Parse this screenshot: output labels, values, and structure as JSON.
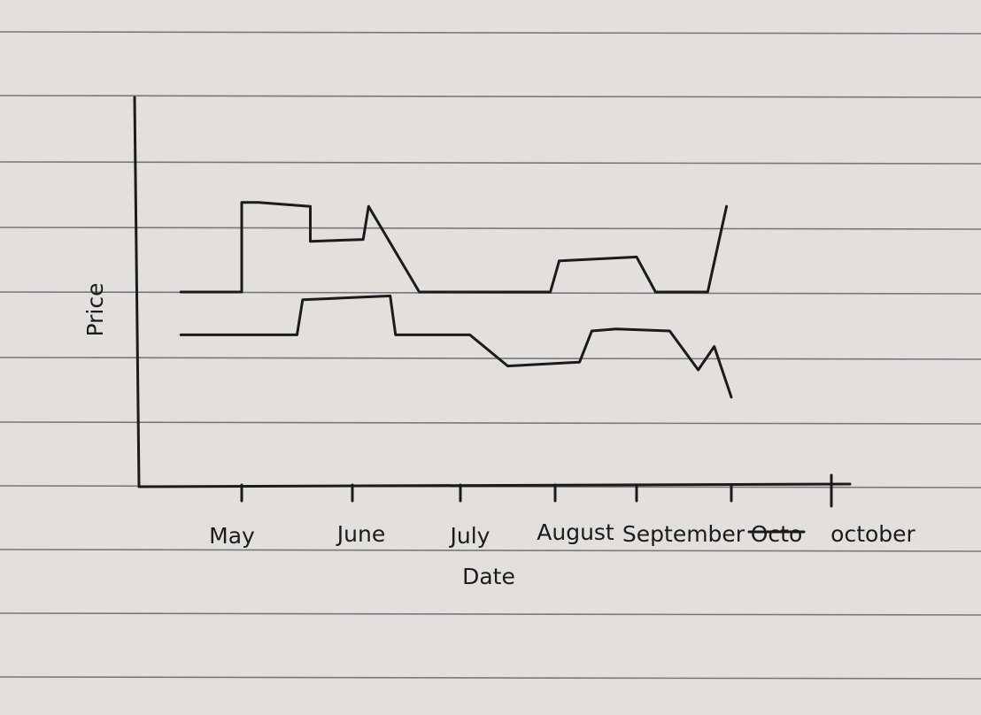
{
  "chart_data": {
    "type": "line",
    "xlabel": "Date",
    "ylabel": "Price",
    "categories": [
      "May",
      "June",
      "July",
      "August",
      "September",
      "octo",
      "october"
    ],
    "struck_label": "Octo",
    "x_range": [
      0,
      6
    ],
    "y_range": [
      0,
      10
    ],
    "grid": true,
    "series": [
      {
        "values": [
          [
            -0.55,
            5.0
          ],
          [
            0.0,
            5.0
          ],
          [
            0.0,
            7.3
          ],
          [
            0.15,
            7.3
          ],
          [
            0.62,
            7.2
          ],
          [
            0.62,
            6.3
          ],
          [
            1.1,
            6.35
          ],
          [
            1.15,
            7.2
          ],
          [
            1.62,
            5.0
          ],
          [
            2.2,
            5.0
          ],
          [
            2.95,
            5.0
          ],
          [
            3.05,
            5.8
          ],
          [
            4.0,
            5.9
          ],
          [
            4.2,
            5.0
          ],
          [
            4.75,
            5.0
          ],
          [
            4.95,
            7.2
          ]
        ]
      },
      {
        "values": [
          [
            -0.55,
            3.9
          ],
          [
            0.5,
            3.9
          ],
          [
            0.55,
            4.8
          ],
          [
            1.35,
            4.9
          ],
          [
            1.4,
            3.9
          ],
          [
            2.1,
            3.9
          ],
          [
            2.5,
            3.1
          ],
          [
            3.3,
            3.2
          ],
          [
            3.45,
            4.0
          ],
          [
            3.75,
            4.05
          ],
          [
            4.35,
            4.0
          ],
          [
            4.65,
            3.0
          ],
          [
            4.82,
            3.6
          ],
          [
            5.0,
            2.3
          ]
        ]
      }
    ]
  }
}
